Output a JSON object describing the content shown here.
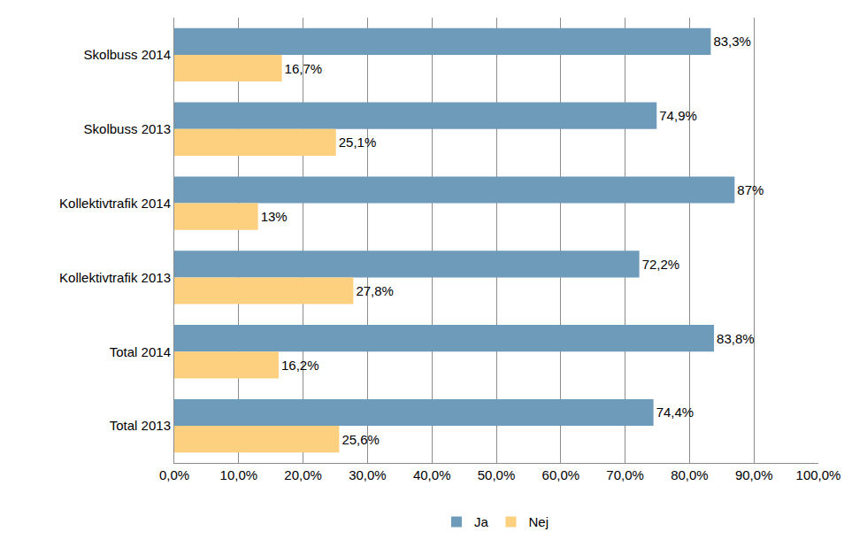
{
  "chart_data": {
    "type": "bar",
    "orientation": "horizontal",
    "categories": [
      "Skolbuss 2014",
      "Skolbuss 2013",
      "Kollektivtrafik 2014",
      "Kollektivtrafik 2013",
      "Total 2014",
      "Total 2013"
    ],
    "series": [
      {
        "name": "Ja",
        "color": "#6f9bbb",
        "values": [
          83.3,
          74.9,
          87,
          72.2,
          83.8,
          74.4
        ],
        "value_labels": [
          "83,3%",
          "74,9%",
          "87%",
          "72,2%",
          "83,8%",
          "74,4%"
        ]
      },
      {
        "name": "Nej",
        "color": "#fcd07f",
        "values": [
          16.7,
          25.1,
          13,
          27.8,
          16.2,
          25.6
        ],
        "value_labels": [
          "16,7%",
          "25,1%",
          "13%",
          "27,8%",
          "16,2%",
          "25,6%"
        ]
      }
    ],
    "xlim": [
      0,
      100
    ],
    "xticks": [
      {
        "value": 0,
        "label": "0,0%"
      },
      {
        "value": 10,
        "label": "10,0%"
      },
      {
        "value": 20,
        "label": "20,0%"
      },
      {
        "value": 30,
        "label": "30,0%"
      },
      {
        "value": 40,
        "label": "40,0%"
      },
      {
        "value": 50,
        "label": "50,0%"
      },
      {
        "value": 60,
        "label": "60,0%"
      },
      {
        "value": 70,
        "label": "70,0%"
      },
      {
        "value": 80,
        "label": "80,0%"
      },
      {
        "value": 90,
        "label": "90,0%"
      },
      {
        "value": 100,
        "label": "100,0%"
      }
    ],
    "grid": true,
    "legend": "bottom",
    "data_labels": true
  }
}
